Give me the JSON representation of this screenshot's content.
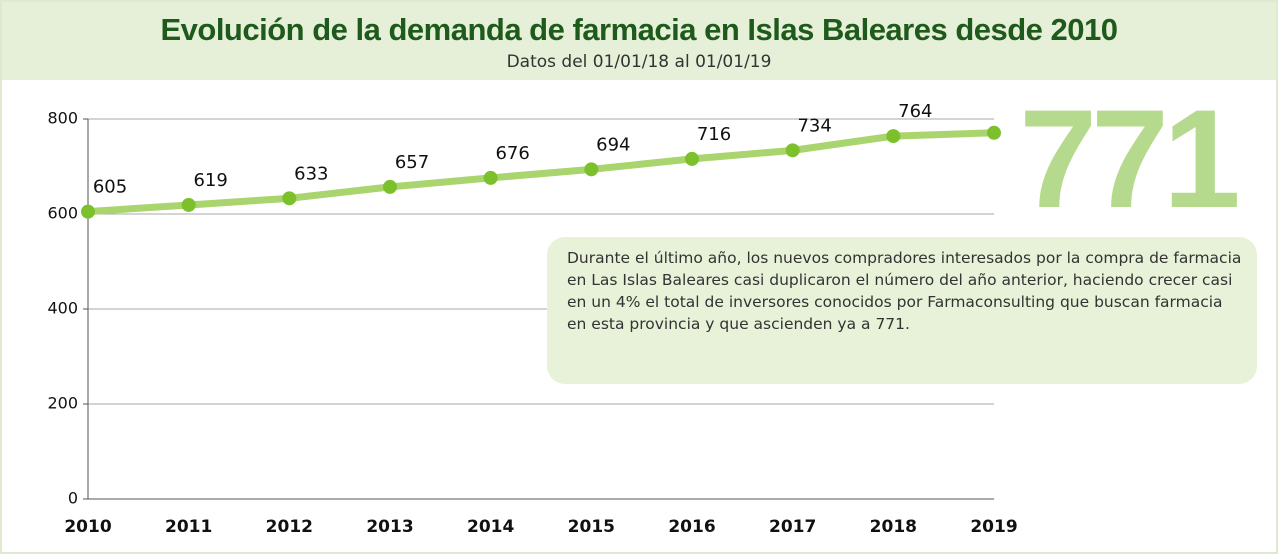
{
  "chart_data": {
    "type": "line",
    "title": "Evolución de la demanda de farmacia en Islas Baleares  desde 2010",
    "subtitle": "Datos del 01/01/18 al 01/01/19",
    "annotation": "Durante el último año, los nuevos compradores interesados por la compra de farmacia en Las Islas Baleares casi duplicaron el número del año anterior, haciendo crecer casi en un 4% el total de inversores conocidos por Farmaconsulting que buscan farmacia en esta provincia y que ascienden ya a 771.",
    "x": [
      2010,
      2011,
      2012,
      2013,
      2014,
      2015,
      2016,
      2017,
      2018,
      2019
    ],
    "values": [
      605,
      619,
      633,
      657,
      676,
      694,
      716,
      734,
      764,
      771
    ],
    "xlim": [
      2010,
      2019
    ],
    "xticks": [
      2010,
      2011,
      2012,
      2013,
      2014,
      2015,
      2016,
      2017,
      2018,
      2019
    ],
    "ylim": [
      0,
      800
    ],
    "yticks": [
      0,
      200,
      400,
      600,
      800
    ],
    "grid": true,
    "data_labels": true,
    "highlight_last": true,
    "color": "#a9d46e",
    "marker_color": "#7cc12b",
    "highlight_color": "#b6da8d"
  }
}
